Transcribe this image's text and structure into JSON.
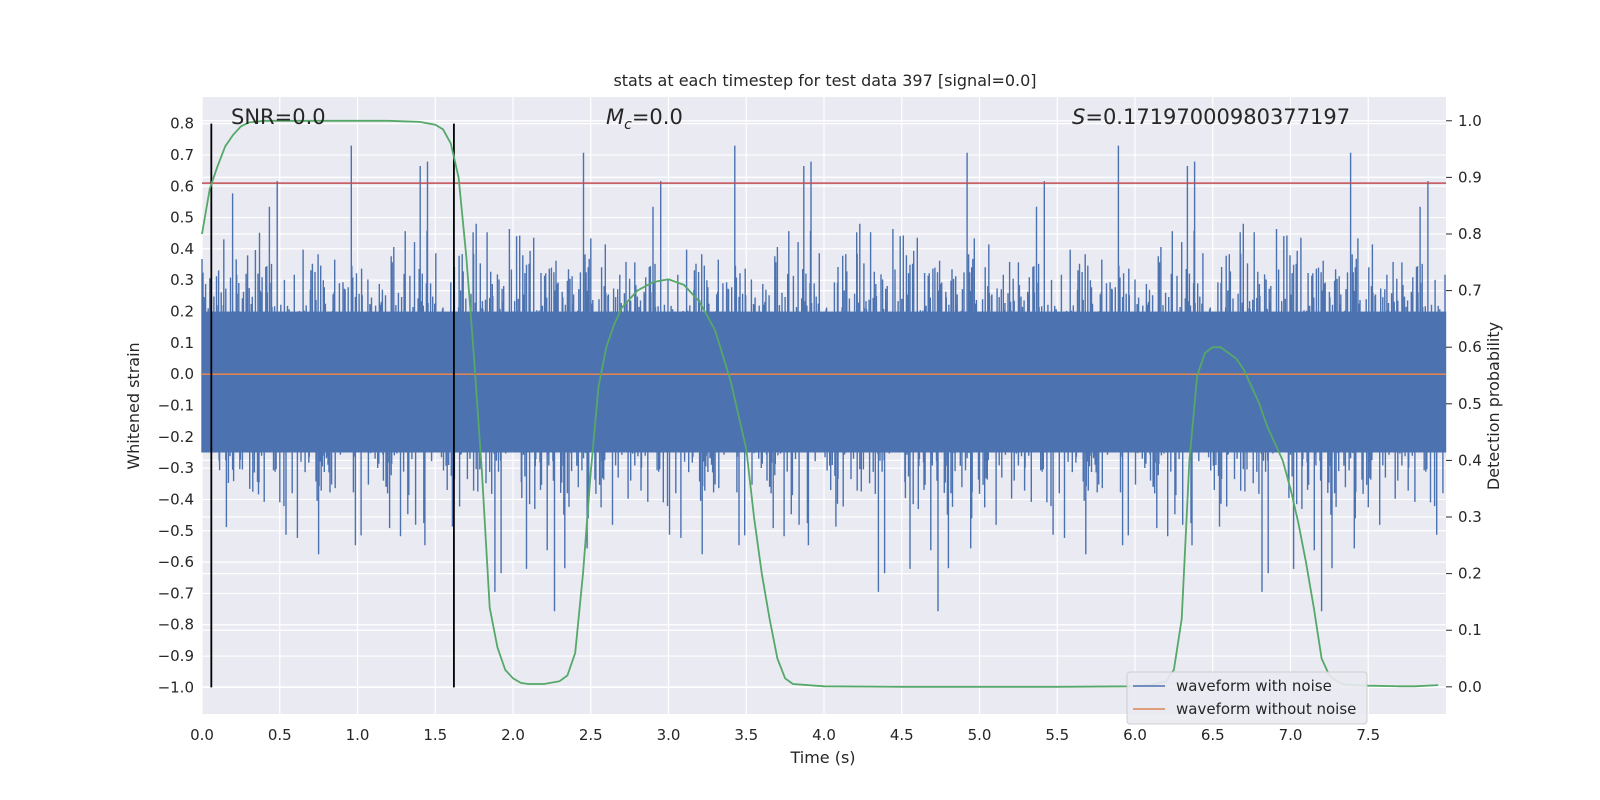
{
  "chart_data": {
    "type": "line",
    "title": "stats at each timestep for test data 397 [signal=0.0]",
    "xlabel": "Time (s)",
    "ylabel": "Whitened strain",
    "y2label": "Detection probability",
    "xlim": [
      0.0,
      8.0
    ],
    "ylim": [
      -1.085,
      0.885
    ],
    "y2lim": [
      -0.048,
      1.042
    ],
    "x_ticks": [
      "0.0",
      "0.5",
      "1.0",
      "1.5",
      "2.0",
      "2.5",
      "3.0",
      "3.5",
      "4.0",
      "4.5",
      "5.0",
      "5.5",
      "6.0",
      "6.5",
      "7.0",
      "7.5"
    ],
    "y_ticks": [
      "0.8",
      "0.7",
      "0.6",
      "0.5",
      "0.4",
      "0.3",
      "0.2",
      "0.1",
      "0.0",
      "-0.1",
      "-0.2",
      "-0.3",
      "-0.4",
      "-0.5",
      "-0.6",
      "-0.7",
      "-0.8",
      "-0.9",
      "-1.0"
    ],
    "y2_ticks": [
      "1.0",
      "0.9",
      "0.8",
      "0.7",
      "0.6",
      "0.5",
      "0.4",
      "0.3",
      "0.2",
      "0.1",
      "0.0"
    ],
    "grid": true,
    "legend_position": "lower-right",
    "annotations": {
      "snr": "SNR=0.0",
      "mc_symbol": "M",
      "mc_sub": "c",
      "mc_value": "=0.0",
      "s_symbol": "S",
      "s_value": "=0.17197000980377197"
    },
    "series": [
      {
        "name": "waveform with noise",
        "color": "#4c72b0",
        "axis": "left",
        "envelope": {
          "typical_amplitude": 0.28,
          "max": 0.8,
          "min": -1.0
        }
      },
      {
        "name": "waveform without noise",
        "color": "#dd8452",
        "axis": "left",
        "constant": 0.0
      }
    ],
    "threshold_line": {
      "y": 0.61,
      "color": "#c44e52"
    },
    "vertical_markers": [
      {
        "x": 0.06,
        "y_range": [
          -1.0,
          0.8
        ]
      },
      {
        "x": 1.62,
        "y_range": [
          -1.0,
          0.8
        ]
      }
    ],
    "detection_probability": {
      "color": "#55a868",
      "x": [
        0.0,
        0.05,
        0.1,
        0.15,
        0.2,
        0.25,
        0.3,
        0.4,
        0.5,
        0.6,
        0.8,
        1.0,
        1.2,
        1.4,
        1.5,
        1.55,
        1.6,
        1.65,
        1.7,
        1.75,
        1.8,
        1.85,
        1.9,
        1.95,
        2.0,
        2.05,
        2.1,
        2.2,
        2.3,
        2.35,
        2.4,
        2.45,
        2.5,
        2.55,
        2.6,
        2.65,
        2.7,
        2.8,
        2.9,
        3.0,
        3.1,
        3.2,
        3.3,
        3.4,
        3.5,
        3.55,
        3.6,
        3.65,
        3.7,
        3.75,
        3.8,
        4.0,
        4.5,
        5.0,
        5.5,
        6.0,
        6.1,
        6.2,
        6.25,
        6.3,
        6.35,
        6.4,
        6.45,
        6.5,
        6.55,
        6.6,
        6.65,
        6.7,
        6.75,
        6.8,
        6.85,
        6.9,
        6.95,
        7.0,
        7.05,
        7.1,
        7.15,
        7.2,
        7.25,
        7.3,
        7.35,
        7.5,
        7.7,
        7.8,
        7.95
      ],
      "y": [
        0.8,
        0.88,
        0.92,
        0.955,
        0.975,
        0.99,
        0.997,
        1.0,
        1.0,
        1.0,
        1.0,
        1.0,
        1.0,
        0.998,
        0.993,
        0.985,
        0.96,
        0.9,
        0.76,
        0.58,
        0.38,
        0.14,
        0.07,
        0.03,
        0.015,
        0.007,
        0.005,
        0.005,
        0.01,
        0.02,
        0.06,
        0.2,
        0.38,
        0.53,
        0.6,
        0.64,
        0.67,
        0.7,
        0.715,
        0.72,
        0.71,
        0.68,
        0.63,
        0.54,
        0.42,
        0.3,
        0.2,
        0.12,
        0.05,
        0.015,
        0.005,
        0.001,
        0.0,
        0.0,
        0.0,
        0.001,
        0.003,
        0.01,
        0.03,
        0.12,
        0.4,
        0.55,
        0.59,
        0.6,
        0.6,
        0.59,
        0.58,
        0.56,
        0.53,
        0.5,
        0.46,
        0.43,
        0.4,
        0.35,
        0.29,
        0.22,
        0.14,
        0.05,
        0.02,
        0.01,
        0.004,
        0.002,
        0.001,
        0.001,
        0.003
      ]
    }
  }
}
